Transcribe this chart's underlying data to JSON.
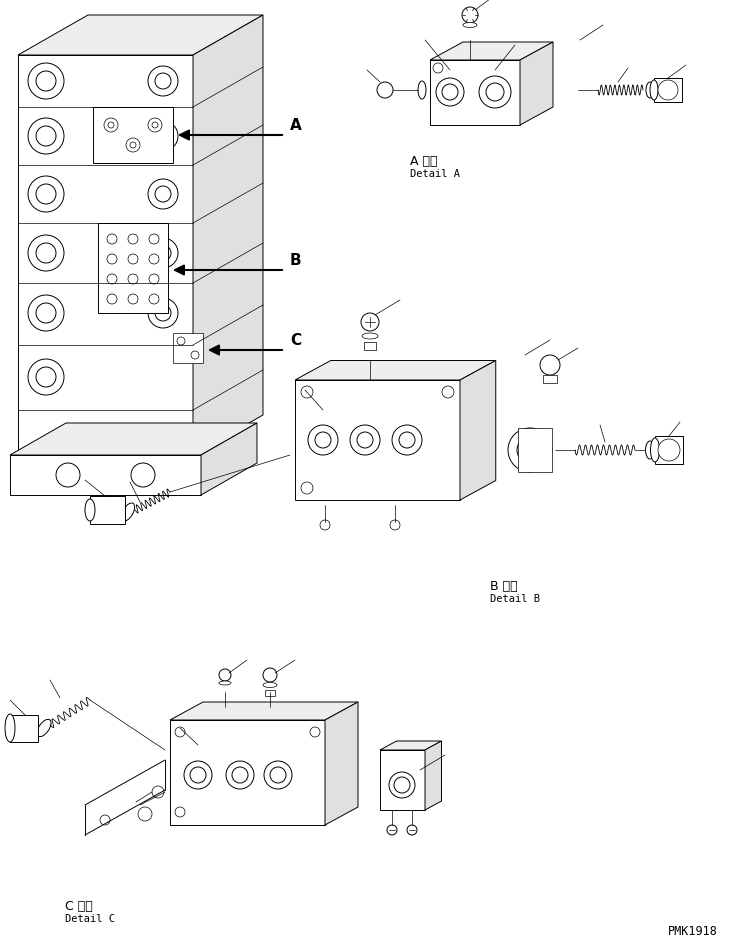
{
  "background_color": "#ffffff",
  "line_color": "#000000",
  "watermark": "PMK1918",
  "label_A_jp": "A 詳細",
  "label_A_en": "Detail A",
  "label_B_jp": "B 詳細",
  "label_B_en": "Detail B",
  "label_C_jp": "C 詳細",
  "label_C_en": "Detail C",
  "figsize": [
    7.29,
    9.5
  ],
  "dpi": 100,
  "lw_main": 0.7,
  "lw_thin": 0.5,
  "lw_callout": 0.5
}
